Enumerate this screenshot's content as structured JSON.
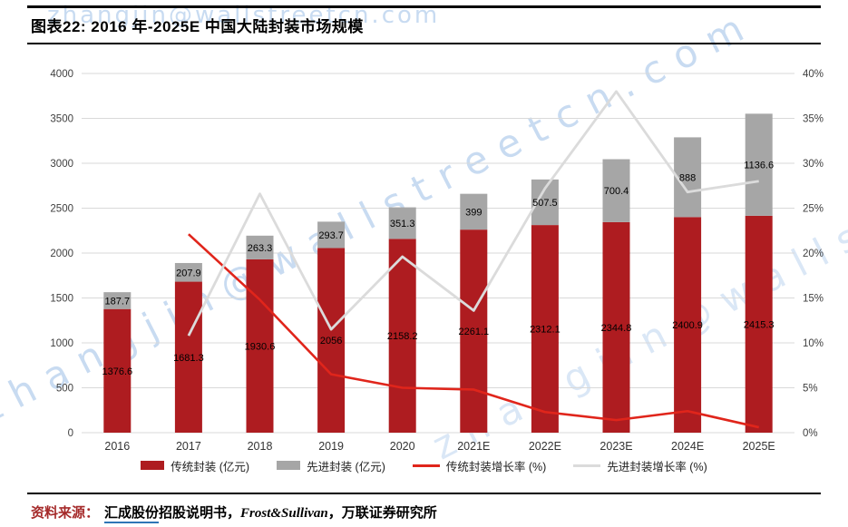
{
  "header": {
    "title": "图表22:  2016 年-2025E 中国大陆封装市场规模"
  },
  "watermark": {
    "text": "zhangjin@wallstreetcn.com"
  },
  "chart_data": {
    "type": "bar",
    "subtype": "stacked-bar with dual-axis growth lines",
    "title": "2016 年-2025E 中国大陆封装市场规模",
    "categories": [
      "2016",
      "2017",
      "2018",
      "2019",
      "2020",
      "2021E",
      "2022E",
      "2023E",
      "2024E",
      "2025E"
    ],
    "bar_series": [
      {
        "name": "传统封装 (亿元)",
        "axis": "left",
        "color": "#AE1C20",
        "values": [
          1376.6,
          1681.3,
          1930.6,
          2056,
          2158.2,
          2261.1,
          2312.1,
          2344.8,
          2400.9,
          2415.3
        ],
        "labels": [
          "1376.6",
          "1681.3",
          "1930.6",
          "2056",
          "2158.2",
          "2261.1",
          "2312.1",
          "2344.8",
          "2400.9",
          "2415.3"
        ]
      },
      {
        "name": "先进封装 (亿元)",
        "axis": "left",
        "color": "#A6A6A6",
        "values": [
          187.7,
          207.9,
          263.3,
          293.7,
          351.3,
          399,
          507.5,
          700.4,
          888,
          1136.6
        ],
        "labels": [
          "187.7",
          "207.9",
          "263.3",
          "293.7",
          "351.3",
          "399",
          "507.5",
          "700.4",
          "888",
          "1136.6"
        ]
      }
    ],
    "line_series": [
      {
        "name": "传统封装增长率 (%)",
        "axis": "right",
        "color": "#E0251B",
        "width": 2.6,
        "values": [
          null,
          22.1,
          14.8,
          6.5,
          5.0,
          4.8,
          2.3,
          1.4,
          2.4,
          0.6
        ]
      },
      {
        "name": "先进封装增长率 (%)",
        "axis": "right",
        "color": "#DBDBDB",
        "width": 2.8,
        "values": [
          null,
          10.8,
          26.6,
          11.5,
          19.6,
          13.6,
          27.2,
          38.0,
          26.8,
          28.0
        ]
      }
    ],
    "left_axis": {
      "min": 0,
      "max": 4000,
      "step": 500,
      "ticks": [
        "0",
        "500",
        "1000",
        "1500",
        "2000",
        "2500",
        "3000",
        "3500",
        "4000"
      ]
    },
    "right_axis": {
      "min": 0,
      "max": 40,
      "step": 5,
      "ticks": [
        "0%",
        "5%",
        "10%",
        "15%",
        "20%",
        "25%",
        "30%",
        "35%",
        "40%"
      ]
    },
    "grid": true,
    "grid_color": "#D9D9D9",
    "legend_position": "bottom"
  },
  "source": {
    "label": "资料来源：",
    "company_link": "汇成股份",
    "doc": "招股说明书，",
    "latin": "Frost&Sullivan",
    "rest": "，万联证券研究所"
  }
}
